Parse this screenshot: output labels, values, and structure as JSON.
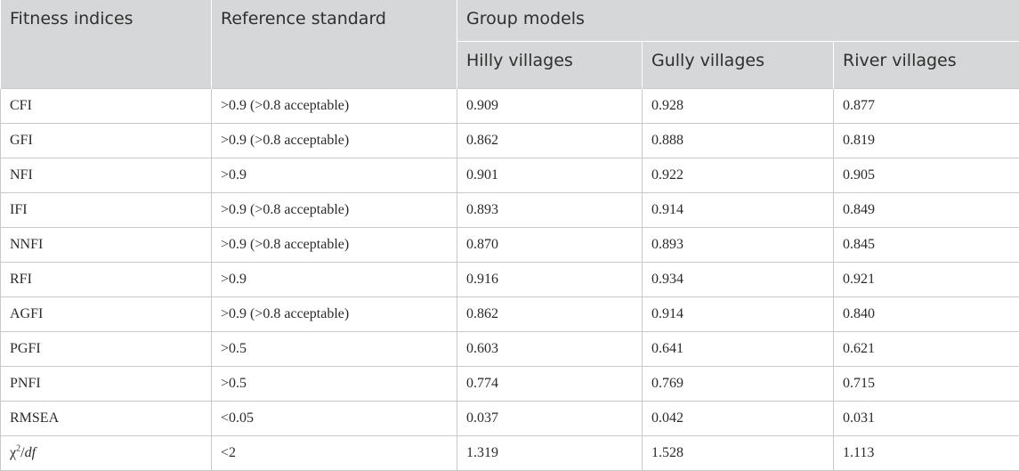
{
  "header": {
    "fitness_indices": "Fitness indices",
    "reference_standard": "Reference standard",
    "group_models": "Group models",
    "groups": [
      "Hilly villages",
      "Gully villages",
      "River villages"
    ]
  },
  "rows": [
    {
      "index": "CFI",
      "standard": ">0.9 (>0.8 acceptable)",
      "hilly": "0.909",
      "gully": "0.928",
      "river": "0.877"
    },
    {
      "index": "GFI",
      "standard": ">0.9 (>0.8 acceptable)",
      "hilly": "0.862",
      "gully": "0.888",
      "river": "0.819"
    },
    {
      "index": "NFI",
      "standard": ">0.9",
      "hilly": "0.901",
      "gully": "0.922",
      "river": "0.905"
    },
    {
      "index": "IFI",
      "standard": ">0.9 (>0.8 acceptable)",
      "hilly": "0.893",
      "gully": "0.914",
      "river": "0.849"
    },
    {
      "index": "NNFI",
      "standard": ">0.9 (>0.8 acceptable)",
      "hilly": "0.870",
      "gully": "0.893",
      "river": "0.845"
    },
    {
      "index": "RFI",
      "standard": ">0.9",
      "hilly": "0.916",
      "gully": "0.934",
      "river": "0.921"
    },
    {
      "index": "AGFI",
      "standard": ">0.9 (>0.8 acceptable)",
      "hilly": "0.862",
      "gully": "0.914",
      "river": "0.840"
    },
    {
      "index": "PGFI",
      "standard": ">0.5",
      "hilly": "0.603",
      "gully": "0.641",
      "river": "0.621"
    },
    {
      "index": "PNFI",
      "standard": ">0.5",
      "hilly": "0.774",
      "gully": "0.769",
      "river": "0.715"
    },
    {
      "index": "RMSEA",
      "standard": "<0.05",
      "hilly": "0.037",
      "gully": "0.042",
      "river": "0.031"
    },
    {
      "index": "χ2/df",
      "index_base": "χ",
      "index_sup": "2",
      "index_rest": "/",
      "index_italic": "df",
      "standard": "<2",
      "hilly": "1.319",
      "gully": "1.528",
      "river": "1.113"
    }
  ]
}
